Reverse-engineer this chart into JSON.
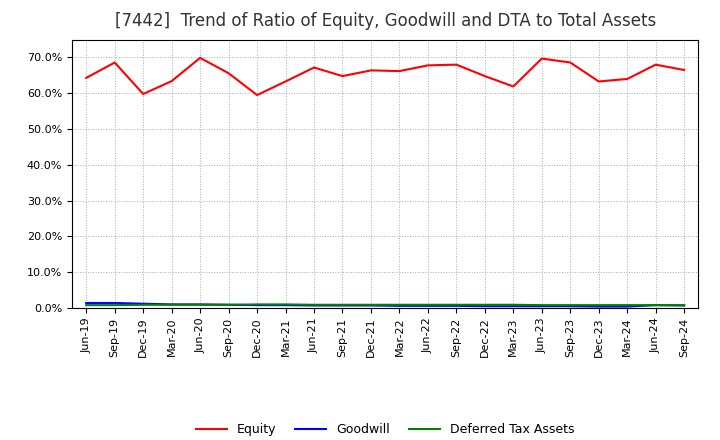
{
  "title": "[7442]  Trend of Ratio of Equity, Goodwill and DTA to Total Assets",
  "ylim": [
    0.0,
    0.75
  ],
  "yticks": [
    0.0,
    0.1,
    0.2,
    0.3,
    0.4,
    0.5,
    0.6,
    0.7
  ],
  "dates": [
    "Jun-19",
    "Sep-19",
    "Dec-19",
    "Mar-20",
    "Jun-20",
    "Sep-20",
    "Dec-20",
    "Mar-21",
    "Jun-21",
    "Sep-21",
    "Dec-21",
    "Mar-22",
    "Jun-22",
    "Sep-22",
    "Dec-22",
    "Mar-23",
    "Jun-23",
    "Sep-23",
    "Dec-23",
    "Mar-24",
    "Jun-24",
    "Sep-24"
  ],
  "equity": [
    0.643,
    0.686,
    0.598,
    0.634,
    0.699,
    0.656,
    0.595,
    0.633,
    0.672,
    0.648,
    0.664,
    0.662,
    0.678,
    0.68,
    0.648,
    0.619,
    0.697,
    0.686,
    0.633,
    0.64,
    0.68,
    0.665
  ],
  "goodwill": [
    0.014,
    0.014,
    0.012,
    0.01,
    0.01,
    0.009,
    0.008,
    0.008,
    0.007,
    0.007,
    0.007,
    0.006,
    0.006,
    0.006,
    0.005,
    0.005,
    0.005,
    0.005,
    0.004,
    0.004,
    0.008,
    0.007
  ],
  "dta": [
    0.008,
    0.008,
    0.009,
    0.009,
    0.009,
    0.009,
    0.01,
    0.01,
    0.009,
    0.009,
    0.009,
    0.009,
    0.009,
    0.009,
    0.009,
    0.009,
    0.008,
    0.008,
    0.008,
    0.008,
    0.008,
    0.008
  ],
  "equity_color": "#ff0000",
  "goodwill_color": "#0000ff",
  "dta_color": "#008000",
  "background_color": "#ffffff",
  "grid_color": "#aaaaaa",
  "title_fontsize": 12,
  "tick_fontsize": 8,
  "legend_labels": [
    "Equity",
    "Goodwill",
    "Deferred Tax Assets"
  ]
}
